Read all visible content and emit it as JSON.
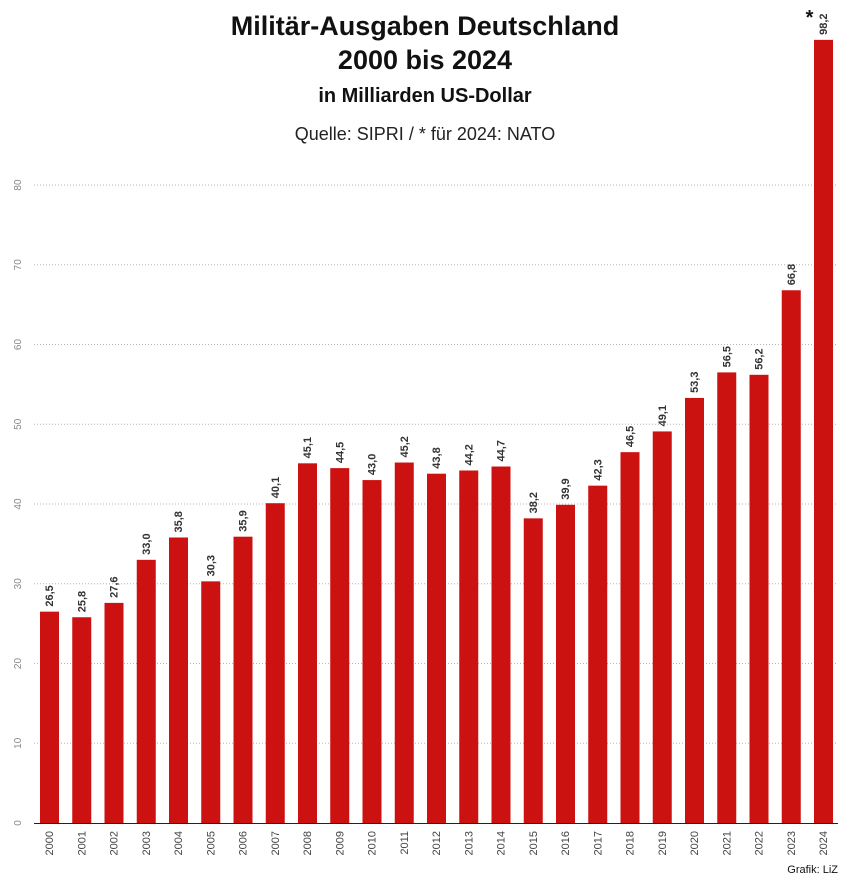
{
  "header": {
    "title_line1": "Militär-Ausgaben Deutschland",
    "title_line2": "2000 bis 2024",
    "subtitle": "in Milliarden US-Dollar",
    "source": "Quelle: SIPRI / * für 2024: NATO"
  },
  "footer": {
    "credit": "Grafik: LiZ"
  },
  "chart_data": {
    "type": "bar",
    "title": "Militär-Ausgaben Deutschland 2000 bis 2024",
    "subtitle": "in Milliarden US-Dollar",
    "xlabel": "",
    "ylabel": "",
    "ylim": [
      0,
      100
    ],
    "yticks": [
      0,
      10,
      20,
      30,
      40,
      50,
      60,
      70,
      80
    ],
    "grid": true,
    "bar_color": "#cc1111",
    "categories": [
      "2000",
      "2001",
      "2002",
      "2003",
      "2004",
      "2005",
      "2006",
      "2007",
      "2008",
      "2009",
      "2010",
      "2011",
      "2012",
      "2013",
      "2014",
      "2015",
      "2016",
      "2017",
      "2018",
      "2019",
      "2020",
      "2021",
      "2022",
      "2023",
      "2024"
    ],
    "values": [
      26.5,
      25.8,
      27.6,
      33.0,
      35.8,
      30.3,
      35.9,
      40.1,
      45.1,
      44.5,
      43.0,
      45.2,
      43.8,
      44.2,
      44.7,
      38.2,
      39.9,
      42.3,
      46.5,
      49.1,
      53.3,
      56.5,
      56.2,
      66.8,
      98.2
    ],
    "value_labels": [
      "26,5",
      "25,8",
      "27,6",
      "33,0",
      "35,8",
      "30,3",
      "35,9",
      "40,1",
      "45,1",
      "44,5",
      "43,0",
      "45,2",
      "43,8",
      "44,2",
      "44,7",
      "38,2",
      "39,9",
      "42,3",
      "46,5",
      "49,1",
      "53,3",
      "56,5",
      "56,2",
      "66,8",
      "98,2"
    ],
    "annotations": [
      {
        "category": "2024",
        "text": "*"
      }
    ]
  }
}
